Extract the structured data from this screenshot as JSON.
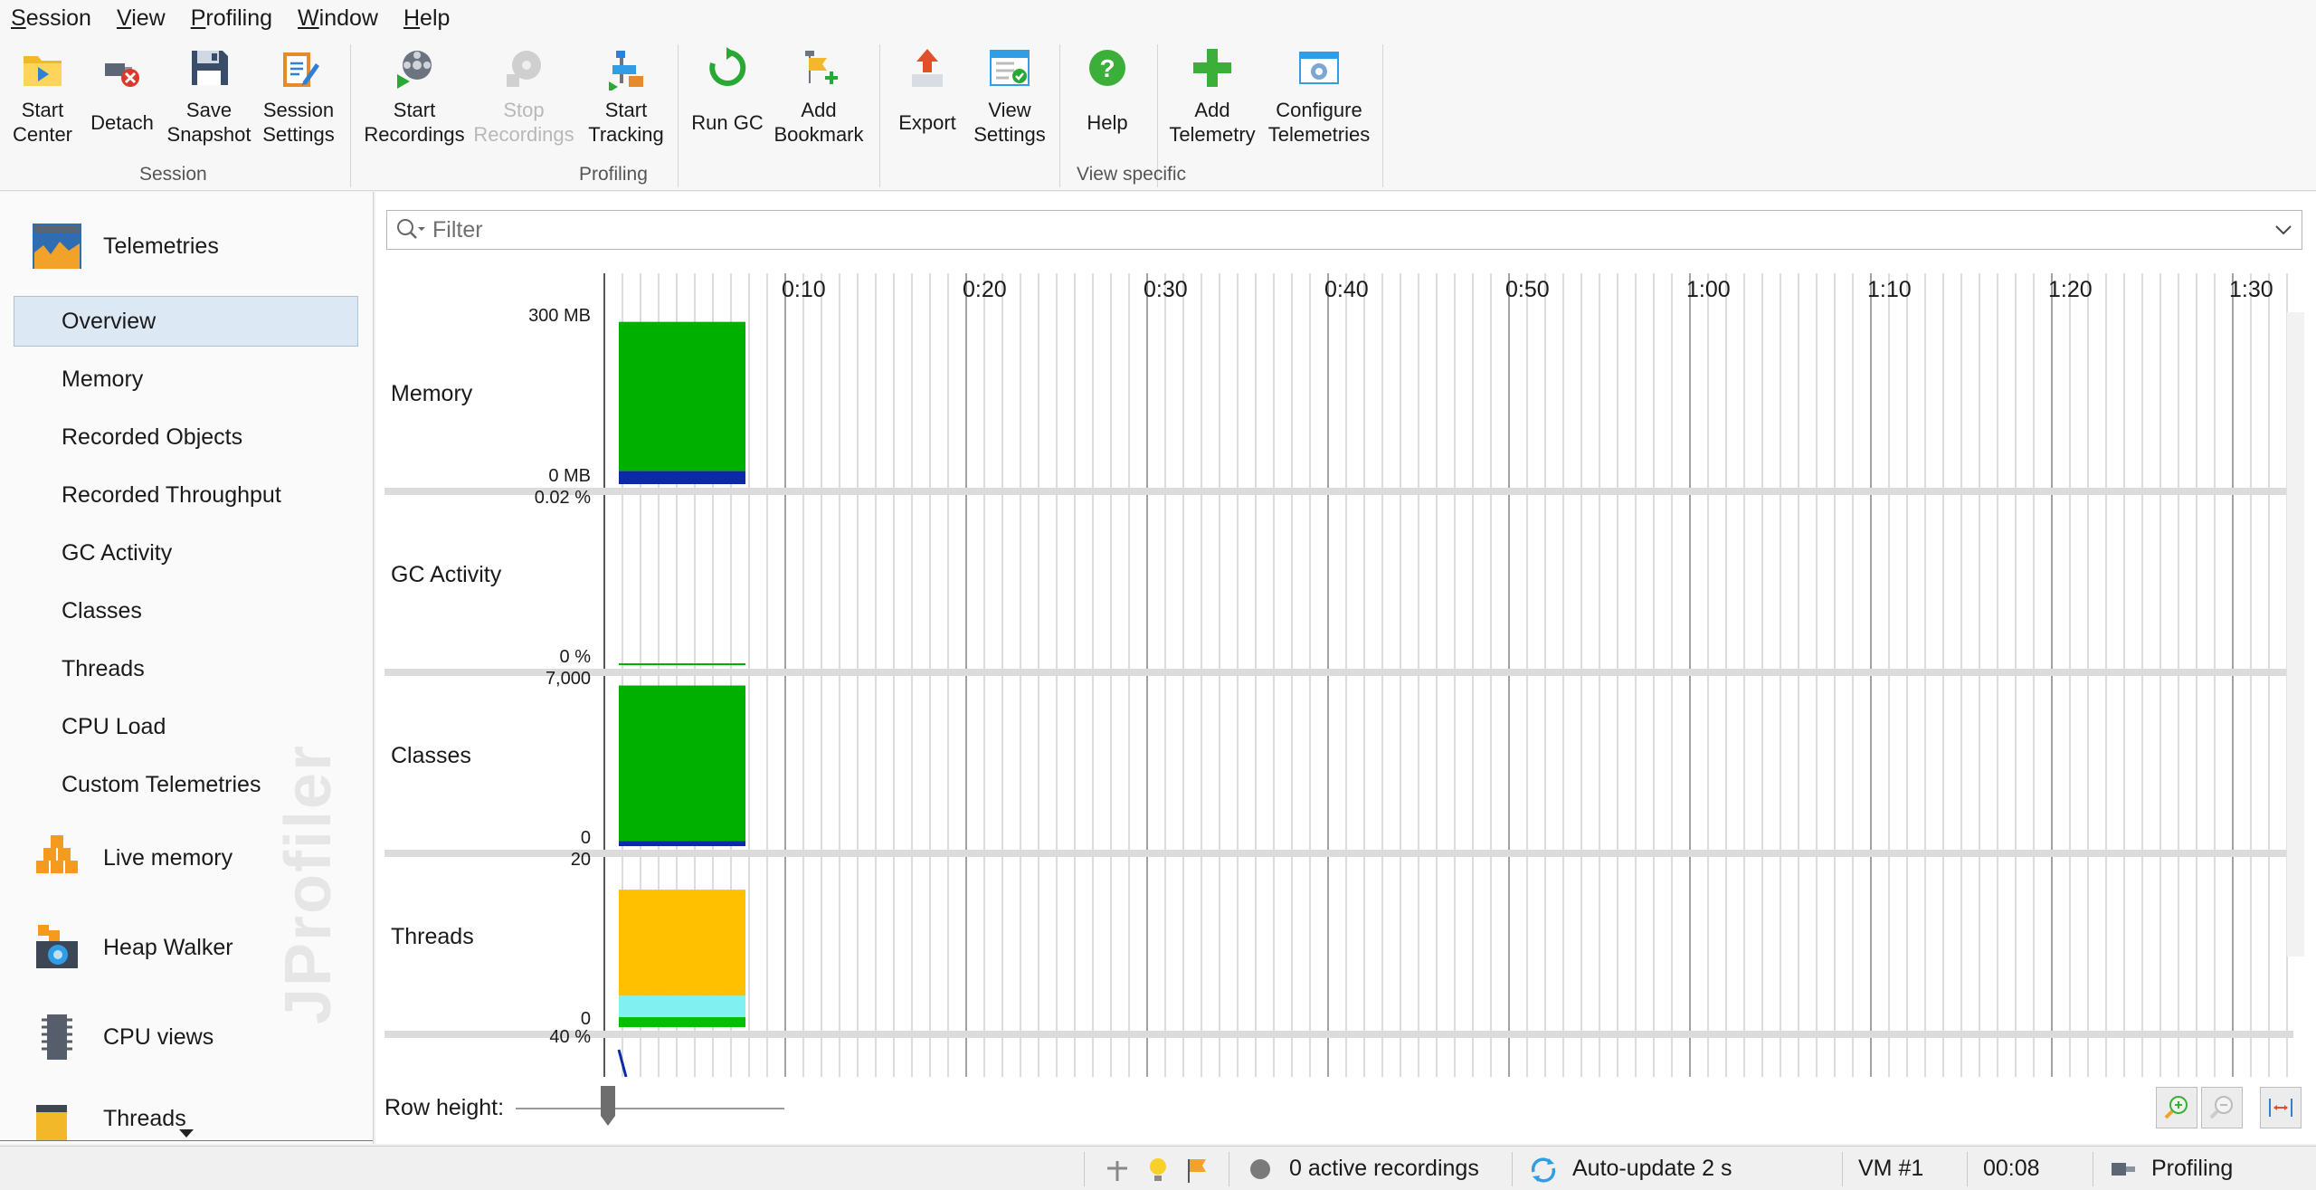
{
  "menu": [
    {
      "first": "S",
      "rest": "ession"
    },
    {
      "first": "V",
      "rest": "iew"
    },
    {
      "first": "P",
      "rest": "rofiling"
    },
    {
      "first": "W",
      "rest": "indow"
    },
    {
      "first": "H",
      "rest": "elp"
    }
  ],
  "toolbar": {
    "buttons": [
      {
        "label": "Start\nCenter",
        "icon": "start-center-icon",
        "enabled": true
      },
      {
        "label": "Detach",
        "icon": "detach-icon",
        "enabled": true
      },
      {
        "label": "Save\nSnapshot",
        "icon": "save-icon",
        "enabled": true
      },
      {
        "label": "Session\nSettings",
        "icon": "session-settings-icon",
        "enabled": true
      },
      {
        "label": "Start\nRecordings",
        "icon": "start-recordings-icon",
        "enabled": true
      },
      {
        "label": "Stop\nRecordings",
        "icon": "stop-recordings-icon",
        "enabled": false
      },
      {
        "label": "Start\nTracking",
        "icon": "start-tracking-icon",
        "enabled": true
      },
      {
        "label": "Run GC",
        "icon": "run-gc-icon",
        "enabled": true
      },
      {
        "label": "Add\nBookmark",
        "icon": "add-bookmark-icon",
        "enabled": true
      },
      {
        "label": "Export",
        "icon": "export-icon",
        "enabled": true
      },
      {
        "label": "View\nSettings",
        "icon": "view-settings-icon",
        "enabled": true
      },
      {
        "label": "Help",
        "icon": "help-icon",
        "enabled": true
      },
      {
        "label": "Add\nTelemetry",
        "icon": "add-telemetry-icon",
        "enabled": true
      },
      {
        "label": "Configure\nTelemetries",
        "icon": "configure-telemetries-icon",
        "enabled": true
      }
    ],
    "groups": [
      "Session",
      "Profiling",
      "View specific"
    ]
  },
  "sidebar": {
    "telemetries_label": "Telemetries",
    "items": [
      "Overview",
      "Memory",
      "Recorded Objects",
      "Recorded Throughput",
      "GC Activity",
      "Classes",
      "Threads",
      "CPU Load",
      "Custom Telemetries"
    ],
    "selected": "Overview",
    "sections": [
      "Live memory",
      "Heap Walker",
      "CPU views",
      "Threads"
    ],
    "watermark": "JProfiler"
  },
  "filter": {
    "placeholder": "Filter"
  },
  "timeline": {
    "labels": [
      "0:10",
      "0:20",
      "0:30",
      "0:40",
      "0:50",
      "1:00",
      "1:10",
      "1:20",
      "1:30"
    ]
  },
  "telemetry_rows": [
    {
      "name": "Memory",
      "max": "300 MB",
      "min": "0 MB"
    },
    {
      "name": "GC Activity",
      "max": "0.02 %",
      "min": "0 %"
    },
    {
      "name": "Classes",
      "max": "7,000",
      "min": "0"
    },
    {
      "name": "Threads",
      "max": "20",
      "min": "0"
    },
    {
      "name": "",
      "max": "40 %",
      "min": ""
    }
  ],
  "chart_data": {
    "type": "area",
    "x_unit": "seconds",
    "elapsed": "00:08",
    "series": [
      {
        "row": "Memory",
        "ymax_label": "300 MB",
        "stack": [
          {
            "color": "#0c2aa6",
            "value_fraction": 0.08
          },
          {
            "color": "#00b000",
            "value_fraction": 0.9
          }
        ]
      },
      {
        "row": "GC Activity",
        "ymax_label": "0.02 %",
        "stack": [
          {
            "color": "#00b000",
            "value_fraction": 0.0
          }
        ]
      },
      {
        "row": "Classes",
        "ymax_label": "7,000",
        "stack": [
          {
            "color": "#0c2aa6",
            "value_fraction": 0.03
          },
          {
            "color": "#00b000",
            "value_fraction": 0.94
          }
        ]
      },
      {
        "row": "Threads",
        "ymax_label": "20",
        "stack": [
          {
            "color": "#00c000",
            "value_fraction": 0.06
          },
          {
            "color": "#80f0f0",
            "value_fraction": 0.13
          },
          {
            "color": "#ffc000",
            "value_fraction": 0.64
          }
        ]
      }
    ]
  },
  "row_height_label": "Row height:",
  "statusbar": {
    "recordings": "0 active recordings",
    "autoupdate": "Auto-update 2 s",
    "vm": "VM #1",
    "time": "00:08",
    "mode": "Profiling"
  }
}
